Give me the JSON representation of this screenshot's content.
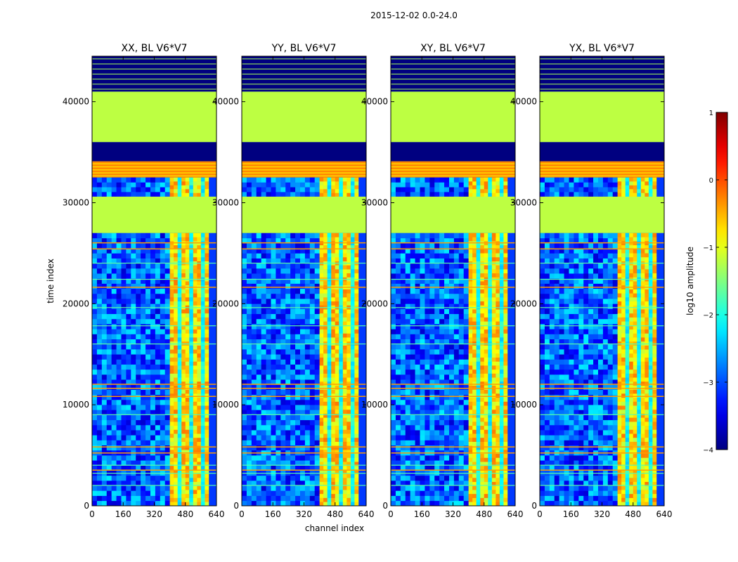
{
  "figure": {
    "suptitle": "2015-12-02 0.0-24.0",
    "shared_xlabel": "channel index",
    "shared_ylabel": "time index"
  },
  "chart_data": {
    "type": "heatmap",
    "x": {
      "label": "channel index",
      "range": [
        0,
        640
      ],
      "ticks": [
        0,
        160,
        320,
        480,
        640
      ]
    },
    "y": {
      "label": "time index",
      "range": [
        0,
        44500
      ],
      "ticks": [
        0,
        10000,
        20000,
        30000,
        40000
      ]
    },
    "panels": [
      {
        "title": "XX, BL V6*V7",
        "pol": "XX",
        "rfi_channel_band": [
          400,
          600
        ]
      },
      {
        "title": "YY, BL V6*V7",
        "pol": "YY",
        "rfi_channel_band": [
          400,
          600
        ]
      },
      {
        "title": "XY, BL V6*V7",
        "pol": "XY",
        "rfi_channel_band": [
          400,
          600
        ]
      },
      {
        "title": "YX, BL V6*V7",
        "pol": "YX",
        "rfi_channel_band": [
          400,
          600
        ]
      }
    ],
    "time_blocks": [
      {
        "from": 27000,
        "to": 30600,
        "state": "flagged-constant",
        "log10_amplitude": -1.2
      },
      {
        "from": 30600,
        "to": 32500,
        "state": "data"
      },
      {
        "from": 32500,
        "to": 34100,
        "state": "constant-stripes",
        "log10_amplitude": -0.3
      },
      {
        "from": 34100,
        "to": 36000,
        "state": "no-data",
        "log10_amplitude": -4
      },
      {
        "from": 36000,
        "to": 41000,
        "state": "flagged-constant",
        "log10_amplitude": -1.2
      },
      {
        "from": 41000,
        "to": 44500,
        "state": "sparse-stripes",
        "log10_amplitude": -4
      }
    ],
    "colorbar": {
      "label": "log10 amplitude",
      "colormap": "jet",
      "range": [
        -4,
        1
      ],
      "ticks": [
        {
          "value": 1,
          "label": "1"
        },
        {
          "value": 0,
          "label": "0"
        },
        {
          "value": -1,
          "label": "−1"
        },
        {
          "value": -2,
          "label": "−2"
        },
        {
          "value": -3,
          "label": "−3"
        },
        {
          "value": -4,
          "label": "−4"
        }
      ]
    }
  }
}
